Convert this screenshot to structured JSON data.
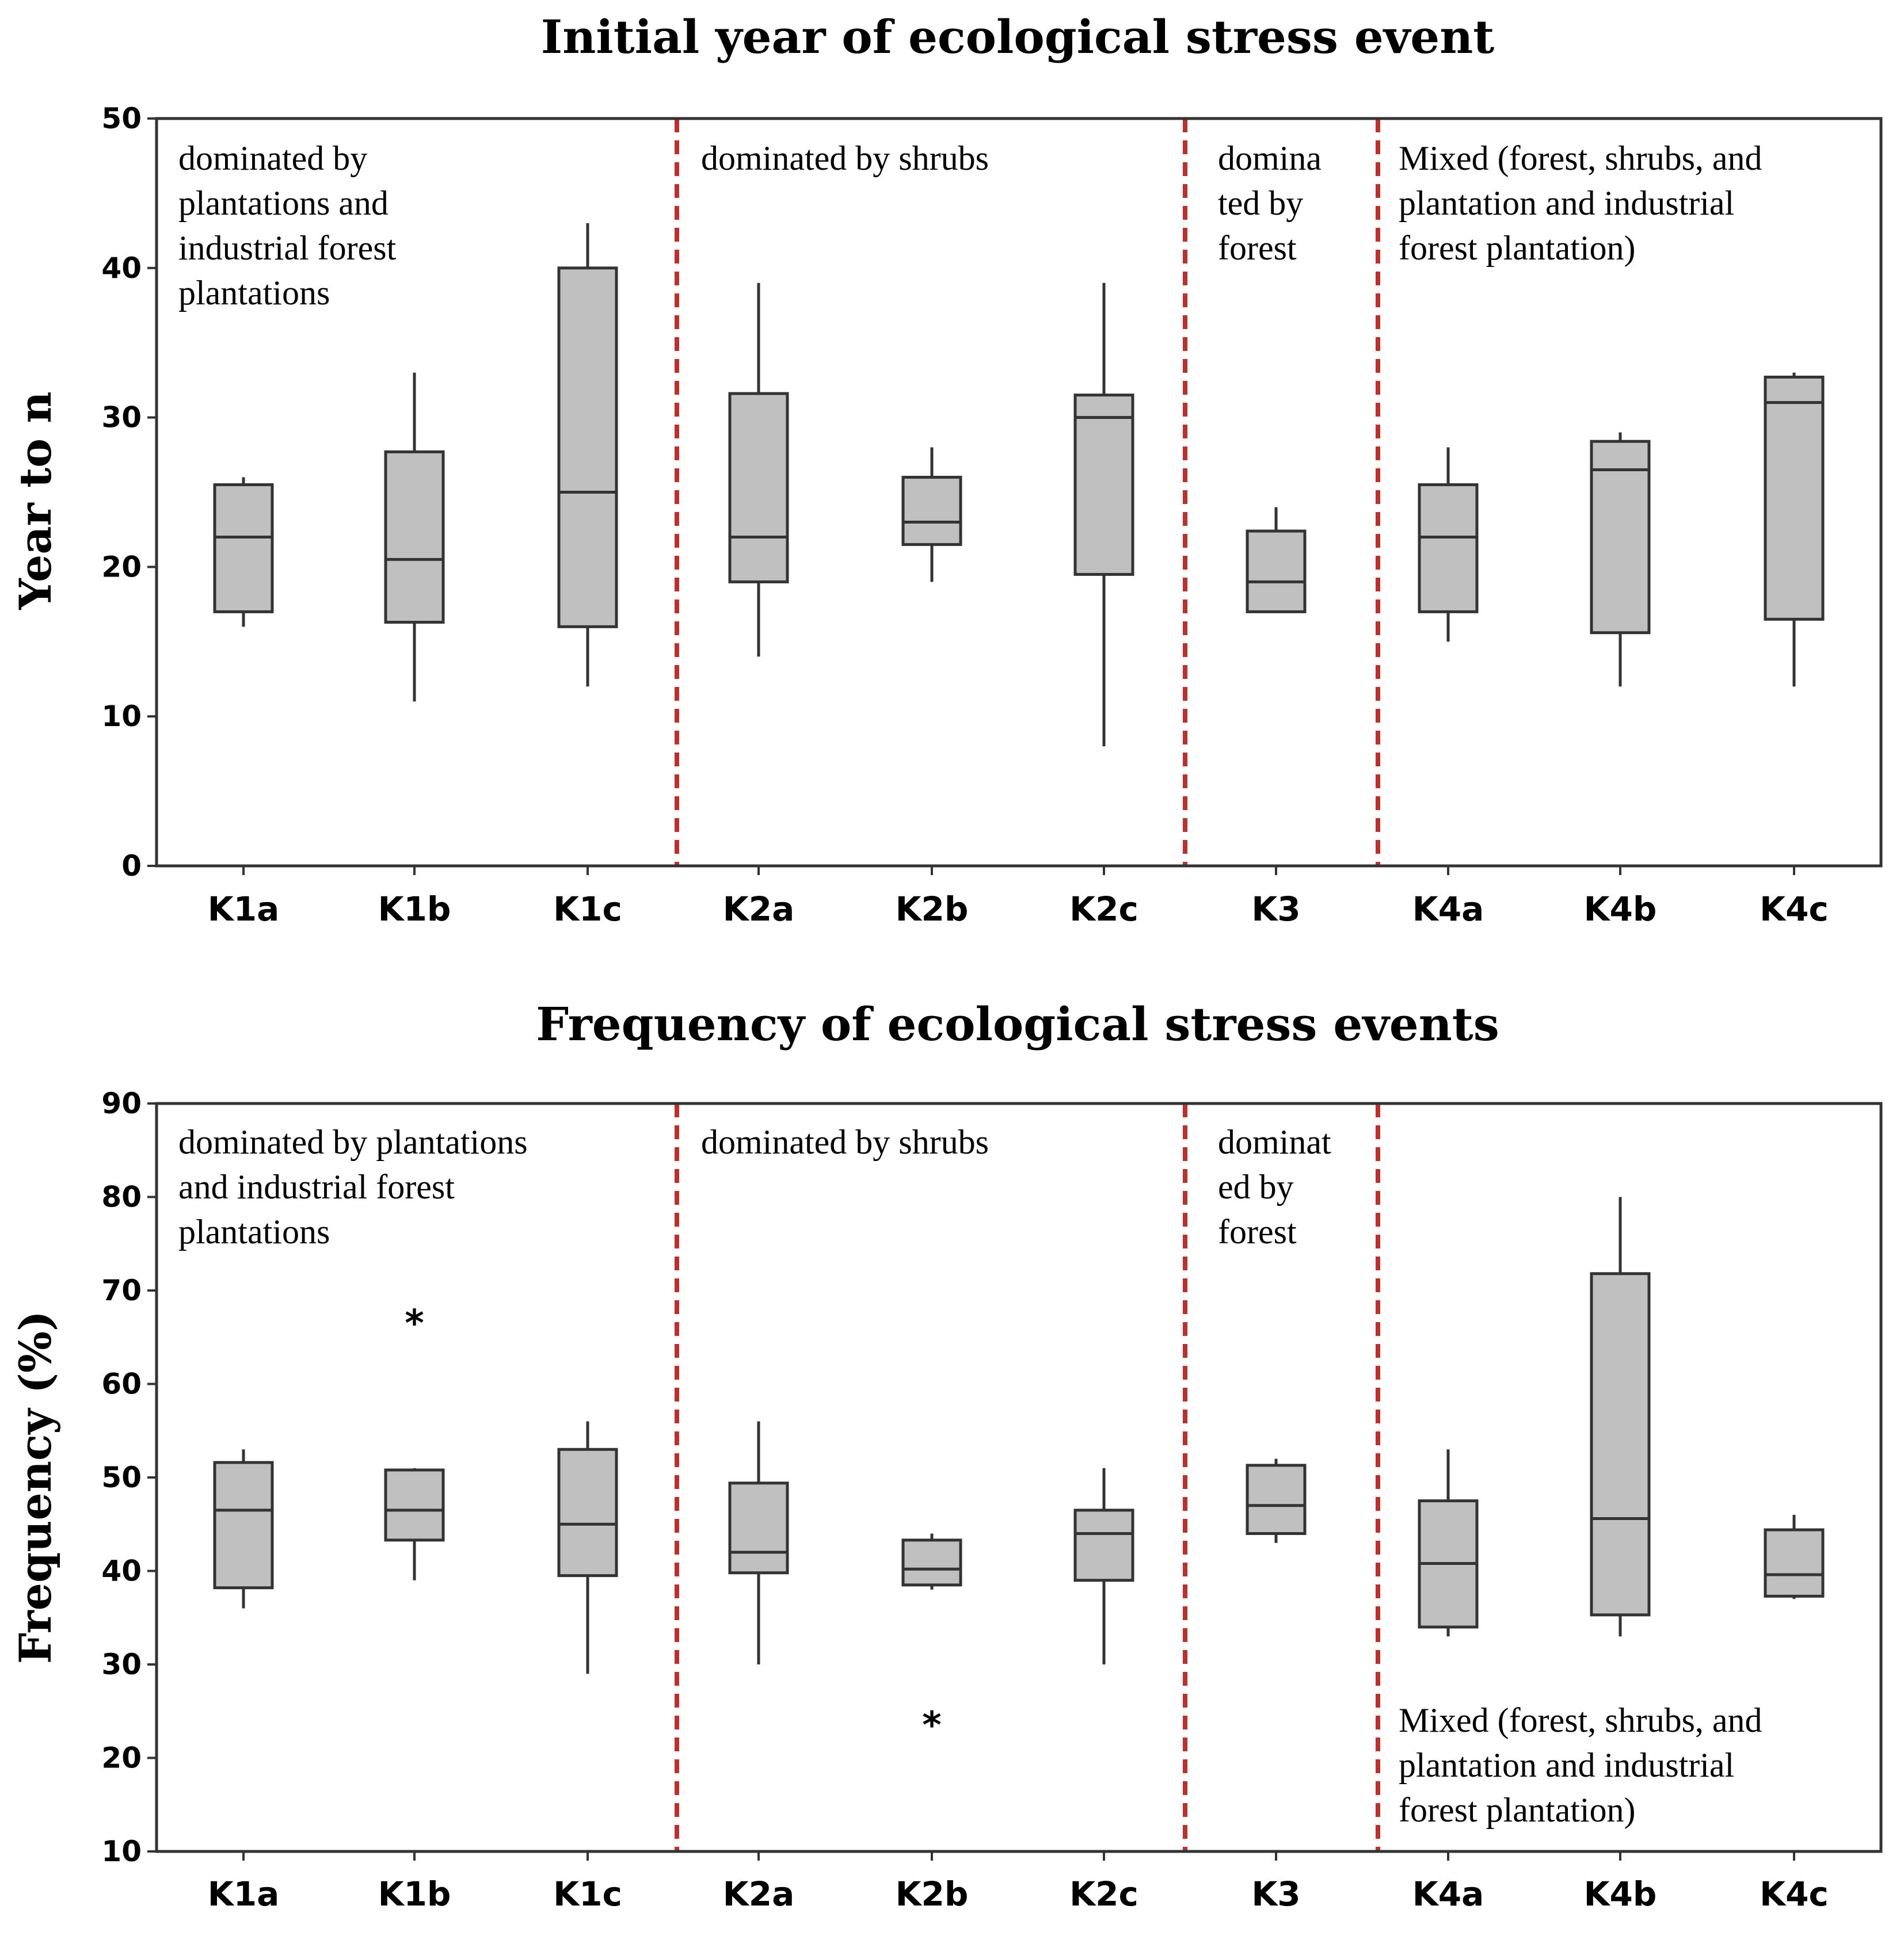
{
  "chart_data": [
    {
      "type": "box",
      "title": "Initial year of ecological stress event",
      "ylabel": "Year to n",
      "xlabel": "",
      "ylim": [
        0,
        50
      ],
      "yticks": [
        "0",
        "10",
        "20",
        "30",
        "40",
        "50"
      ],
      "categories": [
        "K1a",
        "K1b",
        "K1c",
        "K2a",
        "K2b",
        "K2c",
        "K3",
        "K4a",
        "K4b",
        "K4c"
      ],
      "boxes": [
        {
          "min": 16,
          "q1": 17,
          "median": 22,
          "q3": 25.5,
          "max": 26
        },
        {
          "min": 11,
          "q1": 16.3,
          "median": 20.5,
          "q3": 27.7,
          "max": 33
        },
        {
          "min": 12,
          "q1": 16,
          "median": 25,
          "q3": 40,
          "max": 43
        },
        {
          "min": 14,
          "q1": 19,
          "median": 22,
          "q3": 31.6,
          "max": 39
        },
        {
          "min": 19,
          "q1": 21.5,
          "median": 23,
          "q3": 26,
          "max": 28
        },
        {
          "min": 8,
          "q1": 19.5,
          "median": 30,
          "q3": 31.5,
          "max": 39
        },
        {
          "min": 17,
          "q1": 17,
          "median": 19,
          "q3": 22.4,
          "max": 24
        },
        {
          "min": 15,
          "q1": 17,
          "median": 22,
          "q3": 25.5,
          "max": 28
        },
        {
          "min": 12,
          "q1": 15.6,
          "median": 26.5,
          "q3": 28.4,
          "max": 29
        },
        {
          "min": 12,
          "q1": 16.5,
          "median": 31,
          "q3": 32.7,
          "max": 33
        }
      ],
      "outliers": [],
      "separators_after": [
        2,
        5,
        6
      ],
      "regions": [
        {
          "lines": [
            "dominated by",
            "plantations and",
            "industrial forest",
            "plantations"
          ],
          "group": 0,
          "position": "top"
        },
        {
          "lines": [
            "dominated by shrubs"
          ],
          "group": 1,
          "position": "top"
        },
        {
          "lines": [
            "domina",
            "ted by",
            "forest"
          ],
          "group": 2,
          "position": "top"
        },
        {
          "lines": [
            "Mixed (forest, shrubs, and",
            "plantation and industrial",
            "forest plantation)"
          ],
          "group": 3,
          "position": "top"
        }
      ],
      "grid": false,
      "colors": {
        "box": "#c0c0c0",
        "separator": "#c0302a"
      }
    },
    {
      "type": "box",
      "title": "Frequency of ecological stress events",
      "ylabel": "Frequency (%)",
      "xlabel": "",
      "ylim": [
        10,
        90
      ],
      "yticks": [
        "10",
        "20",
        "30",
        "40",
        "50",
        "60",
        "70",
        "80",
        "90"
      ],
      "categories": [
        "K1a",
        "K1b",
        "K1c",
        "K2a",
        "K2b",
        "K2c",
        "K3",
        "K4a",
        "K4b",
        "K4c"
      ],
      "boxes": [
        {
          "min": 36,
          "q1": 38.2,
          "median": 46.5,
          "q3": 51.6,
          "max": 53
        },
        {
          "min": 39,
          "q1": 43.3,
          "median": 46.5,
          "q3": 50.8,
          "max": 51
        },
        {
          "min": 29,
          "q1": 39.5,
          "median": 45,
          "q3": 53,
          "max": 56
        },
        {
          "min": 30,
          "q1": 39.8,
          "median": 42,
          "q3": 49.4,
          "max": 56
        },
        {
          "min": 38,
          "q1": 38.5,
          "median": 40.2,
          "q3": 43.3,
          "max": 44
        },
        {
          "min": 30,
          "q1": 39,
          "median": 44,
          "q3": 46.5,
          "max": 51
        },
        {
          "min": 43,
          "q1": 44,
          "median": 47,
          "q3": 51.3,
          "max": 52
        },
        {
          "min": 33,
          "q1": 34,
          "median": 40.8,
          "q3": 47.5,
          "max": 53
        },
        {
          "min": 33,
          "q1": 35.3,
          "median": 45.6,
          "q3": 71.8,
          "max": 80
        },
        {
          "min": 37,
          "q1": 37.3,
          "median": 39.6,
          "q3": 44.4,
          "max": 46
        }
      ],
      "outliers": [
        {
          "category": "K1b",
          "value": 67
        },
        {
          "category": "K2b",
          "value": 24
        }
      ],
      "outlier_marker": "*",
      "separators_after": [
        2,
        5,
        6
      ],
      "regions": [
        {
          "lines": [
            "dominated by plantations",
            "and industrial forest",
            "plantations"
          ],
          "group": 0,
          "position": "top"
        },
        {
          "lines": [
            "dominated by shrubs"
          ],
          "group": 1,
          "position": "top"
        },
        {
          "lines": [
            "dominat",
            "ed by",
            "forest"
          ],
          "group": 2,
          "position": "top"
        },
        {
          "lines": [
            "Mixed (forest, shrubs, and",
            "plantation and industrial",
            "forest plantation)"
          ],
          "group": 3,
          "position": "bottom"
        }
      ],
      "grid": false,
      "colors": {
        "box": "#c0c0c0",
        "separator": "#c0302a"
      }
    }
  ]
}
